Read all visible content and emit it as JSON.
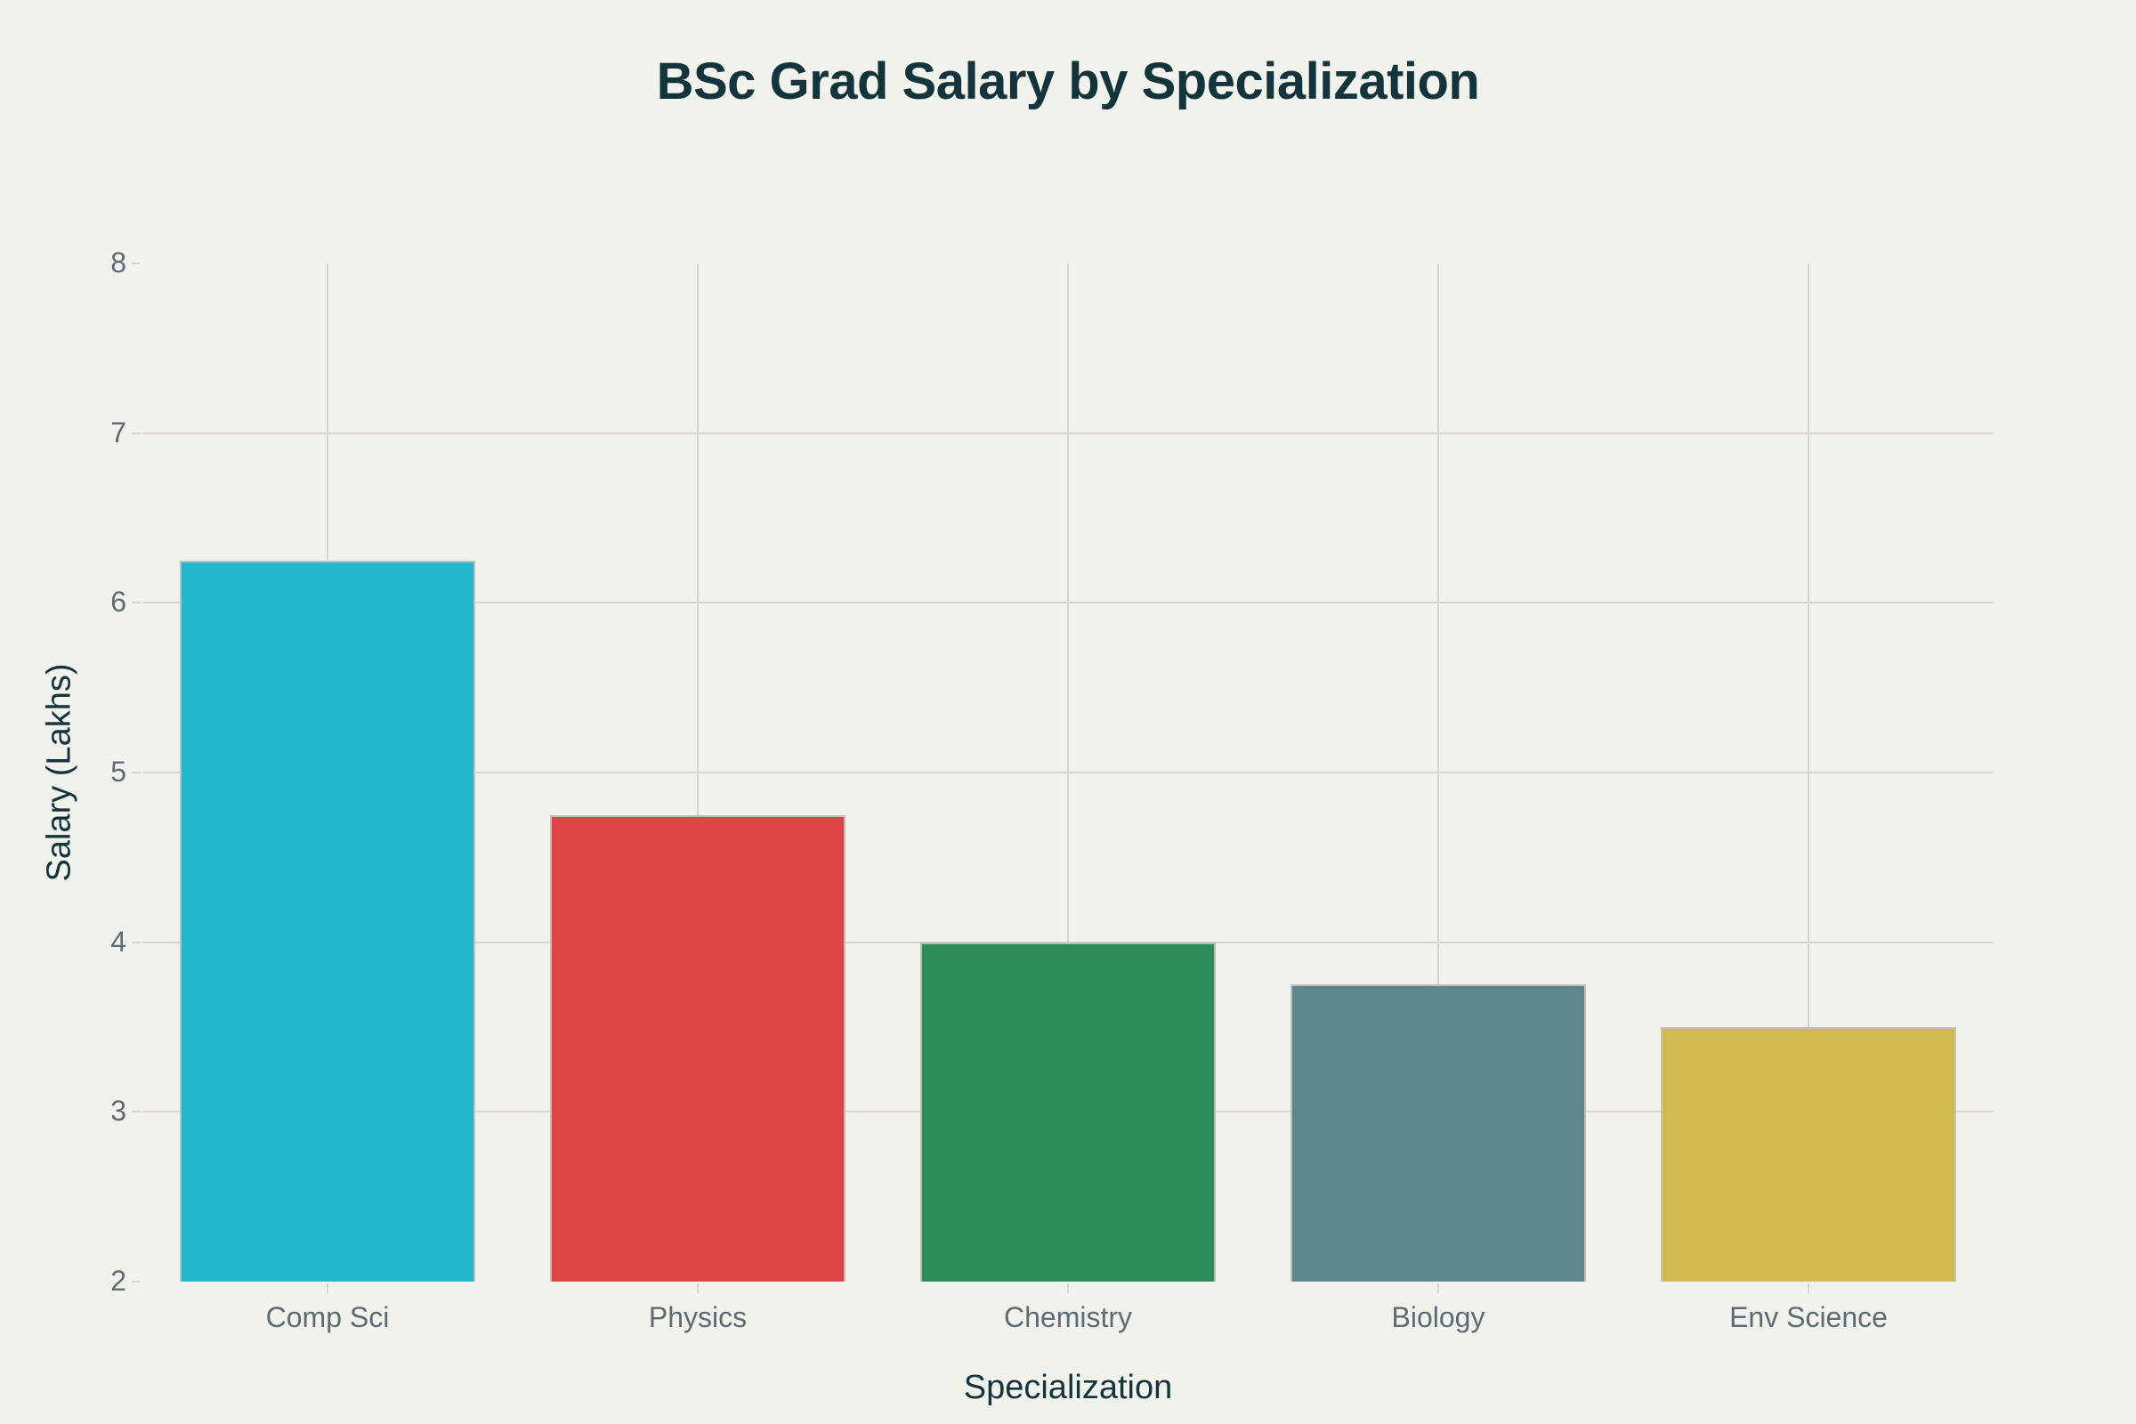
{
  "chart_data": {
    "type": "bar",
    "title": "BSc Grad Salary by Specialization",
    "xlabel": "Specialization",
    "ylabel": "Salary (Lakhs)",
    "categories": [
      "Comp Sci",
      "Physics",
      "Chemistry",
      "Biology",
      "Env Science"
    ],
    "values": [
      6.25,
      4.75,
      4.0,
      3.75,
      3.5
    ],
    "colors": [
      "#21B6CC",
      "#DB4546",
      "#2E8A57",
      "#5E868D",
      "#D2B94D"
    ],
    "ylim": [
      2,
      8
    ],
    "yticks": [
      2,
      3,
      4,
      5,
      6,
      7,
      8
    ],
    "grid": true,
    "legend": null
  },
  "background": "#F2F2EC",
  "grid_color": "#D8D5D0"
}
